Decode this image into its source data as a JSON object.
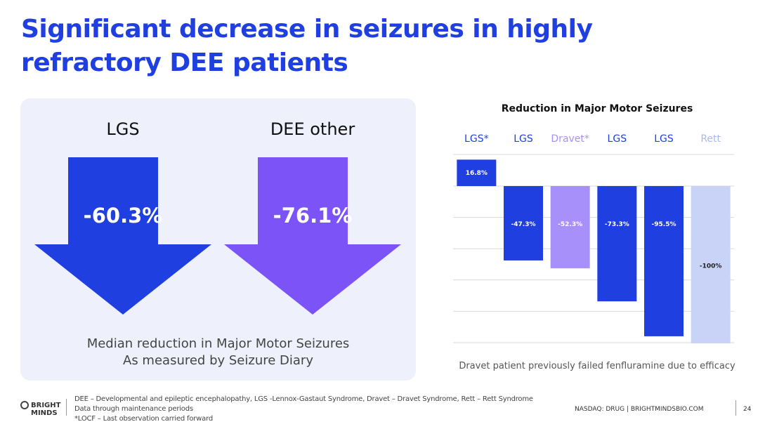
{
  "title": {
    "line1": "Significant decrease in seizures in highly",
    "line2": "refractory DEE patients"
  },
  "panel": {
    "arrows": [
      {
        "label": "LGS",
        "value": "-60.3%",
        "color": "#1f3fe0"
      },
      {
        "label": "DEE other",
        "value": "-76.1%",
        "color": "#7b53f7"
      }
    ],
    "caption_line1": "Median reduction in Major Motor Seizures",
    "caption_line2": "As measured by Seizure Diary"
  },
  "chart_data": {
    "type": "bar",
    "title": "Reduction in Major Motor Seizures",
    "categories": [
      "LGS*",
      "LGS",
      "Dravet*",
      "LGS",
      "LGS",
      "Rett"
    ],
    "values": [
      16.8,
      -47.3,
      -52.3,
      -73.3,
      -95.5,
      -100
    ],
    "data_labels": [
      "16.8%",
      "-47.3%",
      "-52.3%",
      "-73.3%",
      "-95.5%",
      "-100%"
    ],
    "colors": [
      "#1f3fe0",
      "#1f3fe0",
      "#a890fa",
      "#1f3fe0",
      "#1f3fe0",
      "#c9d3f8"
    ],
    "label_colors": [
      "#1f3fe0",
      "#1f3fe0",
      "#a890fa",
      "#1f3fe0",
      "#1f3fe0",
      "#a9b9f0"
    ],
    "ylim": [
      -100,
      20
    ],
    "grid": true,
    "xlabel": "",
    "ylabel": "",
    "note": "Dravet patient previously failed fenfluramine due to efficacy"
  },
  "footer": {
    "logo_line1": "BRIGHT",
    "logo_line2": "MINDS",
    "notes": [
      "DEE – Developmental and epileptic encephalopathy, LGS -Lennox-Gastaut Syndrome, Dravet – Dravet Syndrome, Rett – Rett Syndrome",
      "Data through maintenance periods",
      "*LOCF – Last observation carried forward"
    ],
    "nasdaq": "NASDAQ: DRUG | BRIGHTMINDSBIO.COM",
    "page": "24"
  }
}
